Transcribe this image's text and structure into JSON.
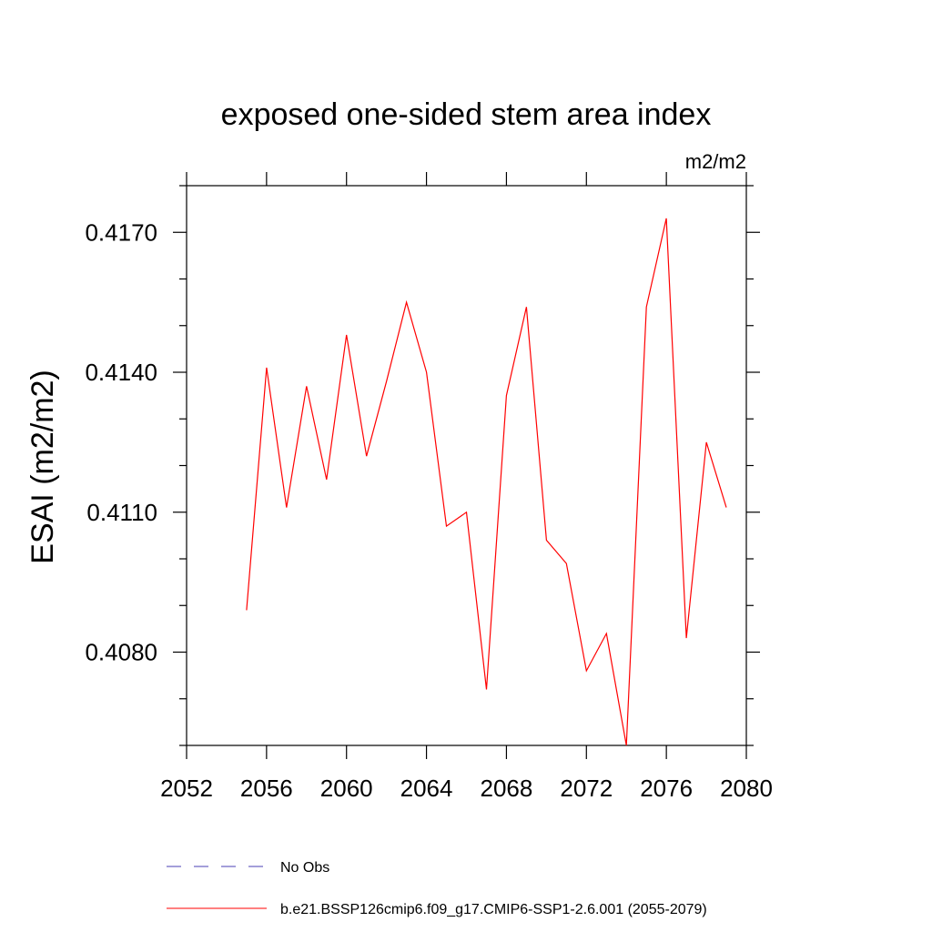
{
  "chart_data": {
    "type": "line",
    "title": "exposed one-sided stem area index",
    "units": "m2/m2",
    "xlabel": "",
    "ylabel": "ESAI  (m2/m2)",
    "xlim": [
      2052,
      2080
    ],
    "ylim": [
      0.406,
      0.418
    ],
    "xticks": [
      2052,
      2056,
      2060,
      2064,
      2068,
      2072,
      2076,
      2080
    ],
    "xtick_labels": [
      "2052",
      "2056",
      "2060",
      "2064",
      "2068",
      "2072",
      "2076",
      "2080"
    ],
    "yticks": [
      0.408,
      0.411,
      0.414,
      0.417
    ],
    "ytick_labels": [
      "0.4080",
      "0.4110",
      "0.4140",
      "0.4170"
    ],
    "series": [
      {
        "name": "b.e21.BSSP126cmip6.f09_g17.CMIP6-SSP1-2.6.001 (2055-2079)",
        "color": "#ff0000",
        "style": "solid",
        "x": [
          2055,
          2056,
          2057,
          2058,
          2059,
          2060,
          2061,
          2062,
          2063,
          2064,
          2065,
          2066,
          2067,
          2068,
          2069,
          2070,
          2071,
          2072,
          2073,
          2074,
          2075,
          2076,
          2077,
          2078,
          2079
        ],
        "values": [
          0.4089,
          0.4141,
          0.4111,
          0.4137,
          0.4117,
          0.4148,
          0.4122,
          0.4138,
          0.4155,
          0.414,
          0.4107,
          0.411,
          0.4072,
          0.4135,
          0.4154,
          0.4104,
          0.4099,
          0.4076,
          0.4084,
          0.406,
          0.4154,
          0.4173,
          0.4083,
          0.4125,
          0.4111
        ]
      }
    ],
    "legend": [
      {
        "label": "No Obs",
        "color": "#4a3fb5",
        "style": "dashed"
      },
      {
        "label": "b.e21.BSSP126cmip6.f09_g17.CMIP6-SSP1-2.6.001 (2055-2079)",
        "color": "#ff0000",
        "style": "solid"
      }
    ],
    "legend_position": "bottom-left"
  }
}
